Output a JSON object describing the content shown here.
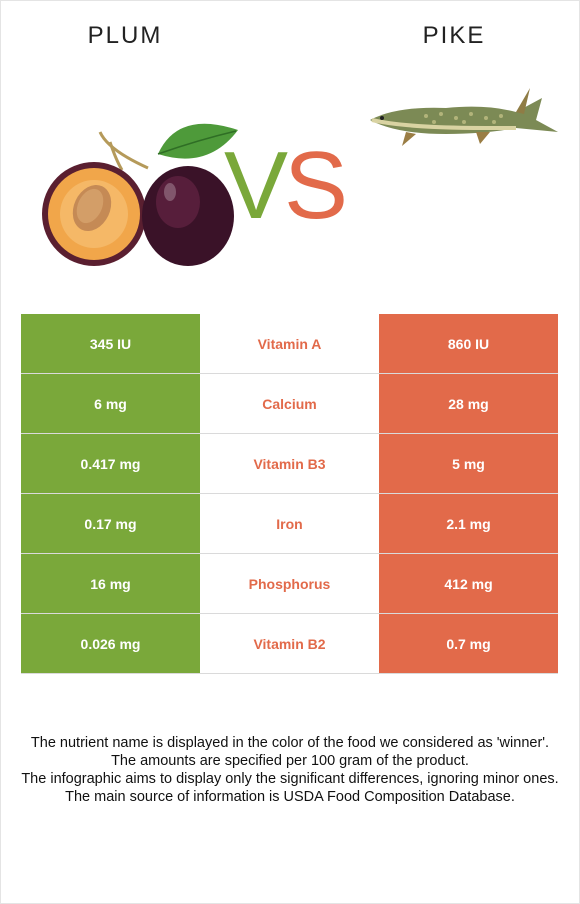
{
  "foods": {
    "left": "PLUM",
    "right": "PIKE"
  },
  "vs": {
    "v": "V",
    "s": "S"
  },
  "colors": {
    "winner_left": "#7aa83a",
    "winner_right": "#e26a4a"
  },
  "rows": [
    {
      "left": "345 IU",
      "nutrient": "Vitamin A",
      "right": "860 IU"
    },
    {
      "left": "6 mg",
      "nutrient": "Calcium",
      "right": "28 mg"
    },
    {
      "left": "0.417 mg",
      "nutrient": "Vitamin B3",
      "right": "5 mg"
    },
    {
      "left": "0.17 mg",
      "nutrient": "Iron",
      "right": "2.1 mg"
    },
    {
      "left": "16 mg",
      "nutrient": "Phosphorus",
      "right": "412 mg"
    },
    {
      "left": "0.026 mg",
      "nutrient": "Vitamin B2",
      "right": "0.7 mg"
    }
  ],
  "notes": [
    "The nutrient name is displayed in the color of the food we considered as 'winner'.",
    "The amounts are specified per 100 gram of the product.",
    "The infographic aims to display only the significant differences, ignoring minor ones.",
    "The main source of information is USDA Food Composition Database."
  ]
}
